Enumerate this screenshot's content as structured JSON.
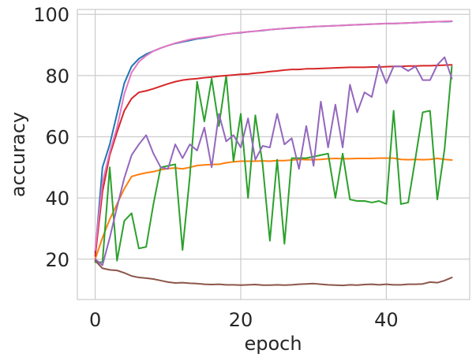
{
  "chart_data": {
    "type": "line",
    "title": "",
    "xlabel": "epoch",
    "ylabel": "accuracy",
    "xlim": [
      -2.45,
      51.45
    ],
    "ylim": [
      6.8,
      101.6
    ],
    "grid": true,
    "legend": "none",
    "xticks": [
      0,
      20,
      40
    ],
    "yticks": [
      20,
      40,
      60,
      80,
      100
    ],
    "x": [
      0,
      1,
      2,
      3,
      4,
      5,
      6,
      7,
      8,
      9,
      10,
      11,
      12,
      13,
      14,
      15,
      16,
      17,
      18,
      19,
      20,
      21,
      22,
      23,
      24,
      25,
      26,
      27,
      28,
      29,
      30,
      31,
      32,
      33,
      34,
      35,
      36,
      37,
      38,
      39,
      40,
      41,
      42,
      43,
      44,
      45,
      46,
      47,
      48,
      49
    ],
    "series": [
      {
        "color": "#1f77b4",
        "values": [
          22.0,
          50.0,
          57.5,
          67.5,
          77.5,
          83.0,
          85.5,
          87.0,
          88.0,
          89.0,
          89.8,
          90.5,
          91.0,
          91.5,
          92.0,
          92.3,
          92.7,
          93.2,
          93.5,
          93.8,
          94.0,
          94.3,
          94.5,
          94.7,
          95.0,
          95.2,
          95.4,
          95.5,
          95.7,
          95.8,
          96.0,
          96.1,
          96.2,
          96.3,
          96.4,
          96.5,
          96.6,
          96.7,
          96.8,
          96.9,
          97.0,
          97.0,
          97.1,
          97.2,
          97.3,
          97.4,
          97.5,
          97.6,
          97.6,
          97.7
        ]
      },
      {
        "color": "#ff7f0e",
        "values": [
          20.0,
          27.0,
          33.0,
          38.0,
          43.0,
          47.0,
          47.7,
          48.2,
          48.6,
          49.2,
          49.6,
          49.8,
          49.5,
          50.0,
          50.6,
          50.8,
          50.9,
          51.0,
          51.5,
          51.8,
          52.0,
          52.0,
          52.0,
          52.1,
          52.0,
          52.2,
          52.2,
          52.4,
          52.6,
          52.5,
          52.5,
          52.6,
          52.8,
          52.9,
          52.8,
          52.8,
          52.9,
          52.9,
          52.9,
          53.0,
          53.0,
          53.0,
          52.6,
          52.5,
          52.6,
          52.5,
          52.6,
          52.9,
          52.6,
          52.4
        ]
      },
      {
        "color": "#2ca02c",
        "values": [
          19.0,
          19.0,
          50.0,
          19.5,
          32.5,
          35.0,
          23.5,
          24.0,
          38.0,
          50.0,
          50.5,
          51.0,
          23.0,
          47.0,
          78.0,
          65.0,
          79.0,
          63.5,
          80.0,
          52.0,
          67.5,
          40.0,
          67.0,
          51.0,
          26.0,
          52.5,
          25.0,
          53.0,
          53.0,
          53.0,
          53.5,
          54.0,
          54.5,
          40.0,
          54.5,
          39.5,
          39.0,
          39.0,
          38.5,
          39.0,
          38.0,
          68.5,
          38.0,
          38.5,
          53.0,
          68.0,
          68.5,
          39.5,
          56.0,
          83.0
        ]
      },
      {
        "color": "#d62728",
        "values": [
          21.0,
          42.0,
          54.0,
          61.5,
          68.5,
          72.5,
          74.5,
          75.0,
          75.7,
          76.5,
          77.3,
          78.0,
          78.5,
          78.8,
          79.0,
          79.3,
          79.5,
          79.8,
          80.0,
          80.2,
          80.4,
          80.5,
          80.8,
          81.0,
          81.3,
          81.5,
          81.8,
          82.0,
          82.0,
          82.2,
          82.2,
          82.3,
          82.4,
          82.5,
          82.6,
          82.7,
          82.7,
          82.7,
          82.8,
          82.8,
          82.9,
          83.0,
          83.0,
          83.1,
          83.1,
          83.2,
          83.2,
          83.3,
          83.4,
          83.5
        ]
      },
      {
        "color": "#9467bd",
        "values": [
          20.0,
          18.0,
          27.0,
          37.0,
          46.5,
          54.0,
          57.5,
          60.5,
          54.5,
          50.0,
          49.5,
          57.5,
          53.0,
          57.5,
          55.5,
          63.0,
          50.0,
          67.5,
          58.5,
          60.5,
          56.5,
          66.0,
          52.5,
          57.0,
          56.5,
          67.5,
          57.5,
          59.5,
          49.5,
          63.5,
          50.5,
          71.5,
          56.5,
          70.5,
          56.5,
          77.0,
          68.0,
          74.5,
          73.0,
          83.5,
          77.5,
          83.0,
          83.0,
          81.5,
          83.0,
          78.5,
          78.5,
          83.5,
          86.0,
          79.0
        ]
      },
      {
        "color": "#8c564b",
        "values": [
          19.5,
          17.0,
          16.5,
          16.3,
          15.5,
          14.5,
          14.0,
          13.8,
          13.5,
          13.0,
          12.5,
          12.2,
          12.3,
          12.1,
          12.0,
          11.8,
          11.7,
          11.8,
          11.6,
          11.6,
          11.5,
          11.6,
          11.7,
          11.5,
          11.5,
          11.6,
          11.5,
          11.6,
          11.8,
          11.9,
          12.0,
          11.8,
          11.6,
          11.5,
          11.4,
          11.6,
          11.5,
          11.7,
          11.8,
          11.6,
          11.8,
          11.6,
          11.6,
          11.8,
          11.8,
          11.9,
          12.5,
          12.3,
          13.0,
          14.0
        ]
      },
      {
        "color": "#e377c2",
        "values": [
          23.0,
          45.0,
          55.0,
          63.0,
          74.0,
          81.0,
          84.5,
          86.5,
          88.0,
          89.0,
          89.8,
          90.6,
          91.2,
          91.8,
          92.2,
          92.5,
          92.8,
          93.2,
          93.5,
          93.8,
          94.1,
          94.3,
          94.5,
          94.8,
          95.0,
          95.2,
          95.4,
          95.6,
          95.7,
          95.8,
          96.0,
          96.1,
          96.2,
          96.3,
          96.4,
          96.5,
          96.6,
          96.7,
          96.8,
          96.9,
          97.0,
          97.0,
          97.1,
          97.2,
          97.3,
          97.4,
          97.5,
          97.6,
          97.7,
          97.8
        ]
      }
    ]
  }
}
